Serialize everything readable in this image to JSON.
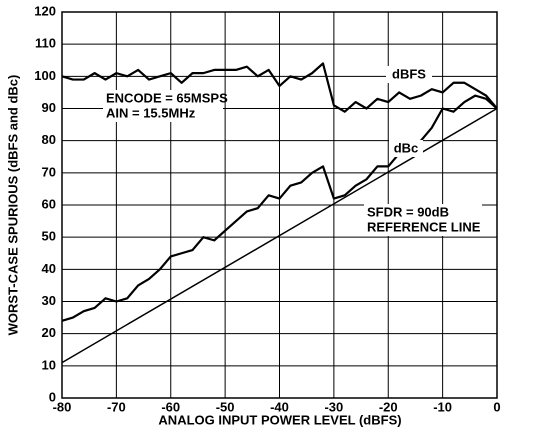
{
  "chart_data": {
    "type": "line",
    "x": [
      -80,
      -78,
      -76,
      -74,
      -72,
      -70,
      -68,
      -66,
      -64,
      -62,
      -60,
      -58,
      -56,
      -54,
      -52,
      -50,
      -48,
      -46,
      -44,
      -42,
      -40,
      -38,
      -36,
      -34,
      -32,
      -30,
      -28,
      -26,
      -24,
      -22,
      -20,
      -18,
      -16,
      -14,
      -12,
      -10,
      -8,
      -6,
      -4,
      -2,
      0
    ],
    "series": [
      {
        "name": "dBFS",
        "color": "#000000",
        "values": [
          100,
          99,
          99,
          101,
          99,
          101,
          100,
          102,
          99,
          100,
          101,
          98,
          101,
          101,
          102,
          102,
          102,
          103,
          100,
          102,
          97,
          100,
          99,
          101,
          104,
          91,
          89,
          92,
          90,
          93,
          92,
          95,
          93,
          94,
          96,
          95,
          98,
          98,
          96,
          94,
          90
        ]
      },
      {
        "name": "dBc",
        "color": "#000000",
        "values": [
          24,
          25,
          27,
          28,
          31,
          30,
          31,
          35,
          37,
          40,
          44,
          45,
          46,
          50,
          49,
          52,
          55,
          58,
          59,
          63,
          62,
          66,
          67,
          70,
          72,
          62,
          63,
          66,
          68,
          72,
          72,
          76,
          79,
          80,
          84,
          90,
          89,
          92,
          94,
          93,
          90
        ]
      },
      {
        "color": "#000000",
        "x": [
          -80,
          0
        ],
        "values": [
          11,
          90
        ]
      }
    ],
    "annotations": [
      "ENCODE = 65MSPS",
      "AIN = 15.5MHz",
      "SFDR = 90dB",
      "REFERENCE LINE"
    ],
    "xlabel": "ANALOG INPUT POWER LEVEL (dBFS)",
    "ylabel": "WORST-CASE SPURIOUS (dBFS and dBc)",
    "xlim": [
      -80,
      0
    ],
    "ylim": [
      0,
      120
    ],
    "xticks": [
      -80,
      -70,
      -60,
      -50,
      -40,
      -30,
      -20,
      -10,
      0
    ],
    "yticks": [
      0,
      10,
      20,
      30,
      40,
      50,
      60,
      70,
      80,
      90,
      100,
      110,
      120
    ],
    "grid": true
  }
}
